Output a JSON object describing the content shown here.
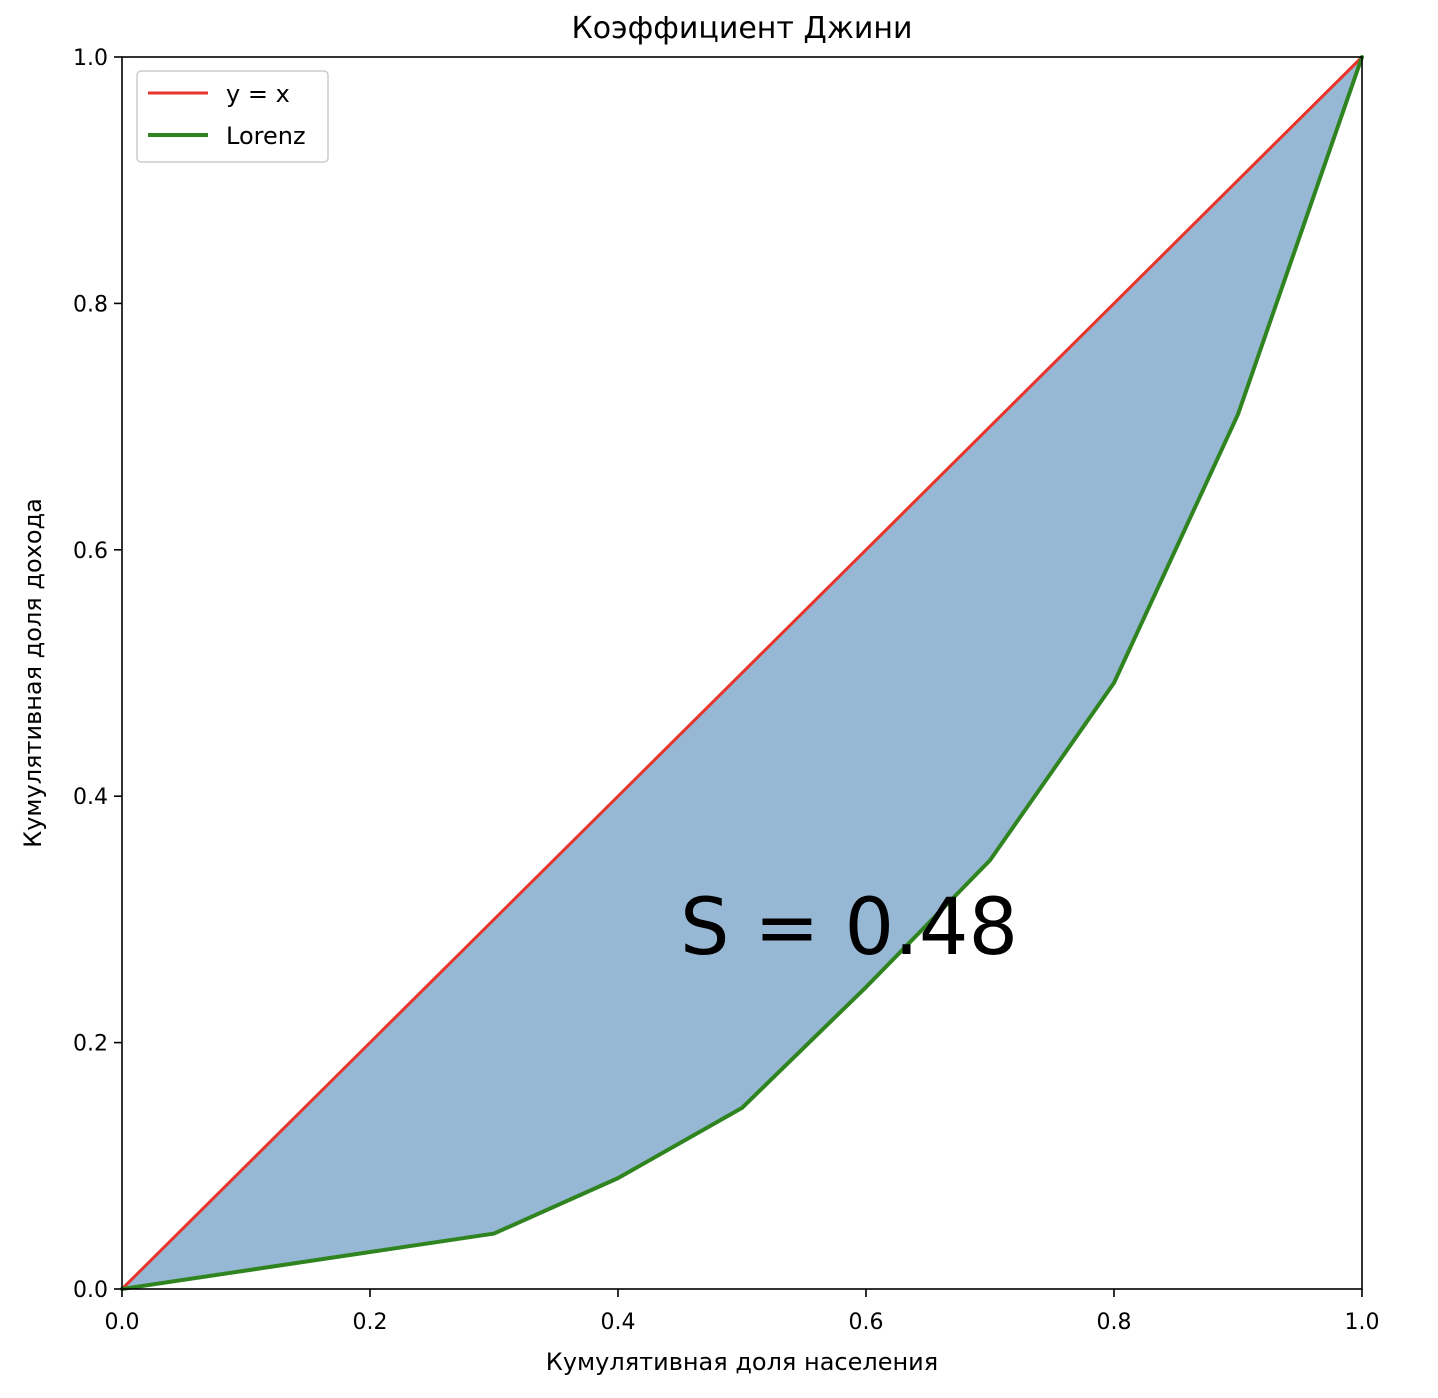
{
  "chart_data": {
    "type": "line",
    "title": "Коэффициент Джини",
    "xlabel": "Кумулятивная доля населения",
    "ylabel": "Кумулятивная доля дохода",
    "xlim": [
      0.0,
      1.0
    ],
    "ylim": [
      0.0,
      1.0
    ],
    "xticks": [
      "0.0",
      "0.2",
      "0.4",
      "0.6",
      "0.8",
      "1.0"
    ],
    "yticks": [
      "0.0",
      "0.2",
      "0.4",
      "0.6",
      "0.8",
      "1.0"
    ],
    "grid": false,
    "legend": {
      "location": "upper-left",
      "entries": [
        "y = x",
        "Lorenz"
      ]
    },
    "series": [
      {
        "name": "y = x",
        "color": "#e8352b",
        "x": [
          0.0,
          1.0
        ],
        "y": [
          0.0,
          1.0
        ]
      },
      {
        "name": "Lorenz",
        "color": "#2f8420",
        "x": [
          0.0,
          0.1,
          0.2,
          0.3,
          0.4,
          0.5,
          0.6,
          0.7,
          0.8,
          0.9,
          1.0
        ],
        "y": [
          0.0,
          0.015,
          0.03,
          0.045,
          0.09,
          0.147,
          0.245,
          0.348,
          0.492,
          0.71,
          1.0
        ]
      }
    ],
    "fill_between": {
      "upper": "y = x",
      "lower": "Lorenz",
      "color": "#97b8d5"
    },
    "annotation": {
      "text": "S = 0.48",
      "x": 0.45,
      "y": 0.285
    }
  }
}
